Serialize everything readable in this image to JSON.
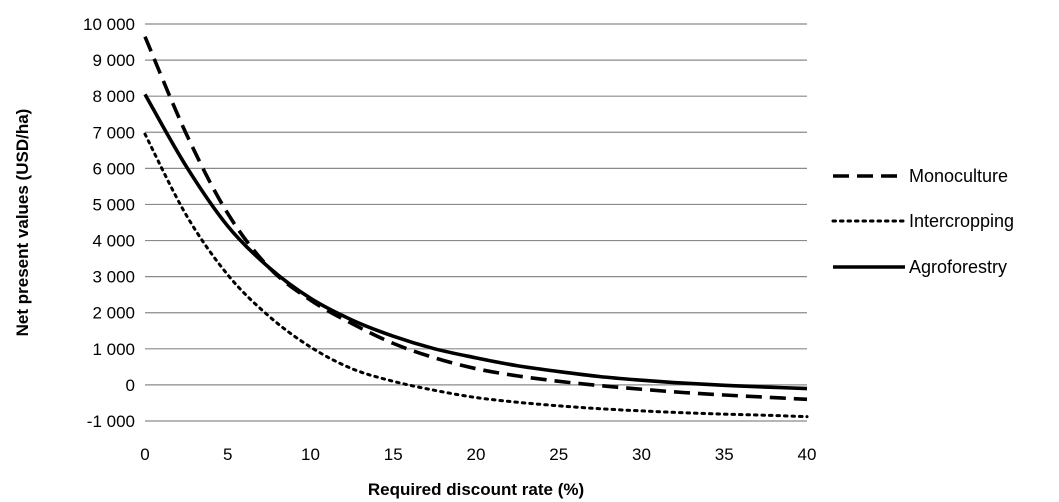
{
  "chart_data": {
    "type": "line",
    "title": "",
    "xlabel": "Required discount rate (%)",
    "ylabel": "Net present values (USD/ha)",
    "xlim": [
      0,
      40
    ],
    "ylim": [
      -1000,
      10000
    ],
    "x_ticks": [
      "0",
      "5",
      "10",
      "15",
      "20",
      "25",
      "30",
      "35",
      "40"
    ],
    "y_ticks": [
      "-1 000",
      "0",
      "1 000",
      "2 000",
      "3 000",
      "4 000",
      "5 000",
      "6 000",
      "7 000",
      "8 000",
      "9 000",
      "10 000"
    ],
    "grid": "horizontal",
    "legend_position": "right",
    "x": [
      0,
      2.5,
      5,
      7.5,
      10,
      12.5,
      15,
      17.5,
      20,
      22.5,
      25,
      27.5,
      30,
      32.5,
      35,
      37.5,
      40
    ],
    "series": [
      {
        "name": "Monoculture",
        "style": "dashed",
        "color": "#000000",
        "values": [
          9650,
          6950,
          4750,
          3250,
          2350,
          1700,
          1150,
          750,
          450,
          250,
          100,
          -20,
          -120,
          -210,
          -280,
          -340,
          -400
        ]
      },
      {
        "name": "Intercropping",
        "style": "dotted",
        "color": "#000000",
        "values": [
          6950,
          4700,
          3050,
          1900,
          1050,
          450,
          100,
          -150,
          -350,
          -480,
          -580,
          -660,
          -720,
          -770,
          -810,
          -840,
          -880
        ]
      },
      {
        "name": "Agroforestry",
        "style": "solid",
        "color": "#000000",
        "values": [
          8050,
          6050,
          4400,
          3250,
          2400,
          1800,
          1350,
          1000,
          750,
          530,
          370,
          230,
          130,
          50,
          -10,
          -60,
          -100
        ]
      }
    ]
  }
}
